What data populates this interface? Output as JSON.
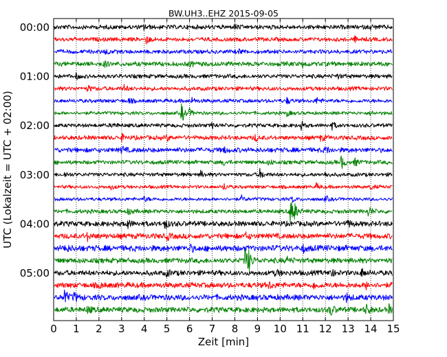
{
  "chart_data": {
    "type": "line",
    "title": "BW.UH3..EHZ 2015-09-05",
    "xlabel": "Zeit  [min]",
    "ylabel": "UTC (Lokalzeit = UTC + 02:00)",
    "xlim": [
      0,
      15
    ],
    "xticks": [
      0,
      1,
      2,
      3,
      4,
      5,
      6,
      7,
      8,
      9,
      10,
      11,
      12,
      13,
      14,
      15
    ],
    "x_grid": true,
    "trace_interval_minutes": 15,
    "colors": [
      "#000000",
      "#ff0000",
      "#0000ff",
      "#008000"
    ],
    "yticks": [
      {
        "label": "00:00",
        "row": 0
      },
      {
        "label": "01:00",
        "row": 4
      },
      {
        "label": "02:00",
        "row": 8
      },
      {
        "label": "03:00",
        "row": 12
      },
      {
        "label": "04:00",
        "row": 16
      },
      {
        "label": "05:00",
        "row": 20
      }
    ],
    "series": [
      {
        "start": "00:00",
        "amplitude": 0.32,
        "events": [
          {
            "t": 4.0,
            "a": 0.45
          },
          {
            "t": 8.0,
            "a": 0.35
          },
          {
            "t": 14.0,
            "a": 0.3
          }
        ]
      },
      {
        "start": "00:15",
        "amplitude": 0.3,
        "events": [
          {
            "t": 4.1,
            "a": 0.6
          },
          {
            "t": 13.3,
            "a": 0.35
          }
        ]
      },
      {
        "start": "00:30",
        "amplitude": 0.3,
        "events": [
          {
            "t": 2.3,
            "a": 0.45
          },
          {
            "t": 8.2,
            "a": 0.3
          }
        ]
      },
      {
        "start": "00:45",
        "amplitude": 0.34,
        "events": [
          {
            "t": 2.2,
            "a": 0.5
          },
          {
            "t": 6.0,
            "a": 0.35
          },
          {
            "t": 11.0,
            "a": 0.3
          }
        ]
      },
      {
        "start": "01:00",
        "amplitude": 0.3,
        "events": [
          {
            "t": 1.0,
            "a": 0.35
          },
          {
            "t": 12.5,
            "a": 0.35
          }
        ]
      },
      {
        "start": "01:15",
        "amplitude": 0.3,
        "events": [
          {
            "t": 1.5,
            "a": 0.45
          },
          {
            "t": 3.1,
            "a": 0.5
          }
        ]
      },
      {
        "start": "01:30",
        "amplitude": 0.28,
        "events": [
          {
            "t": 3.3,
            "a": 0.4
          },
          {
            "t": 6.1,
            "a": 0.45
          },
          {
            "t": 10.3,
            "a": 0.45
          },
          {
            "t": 11.6,
            "a": 0.5
          }
        ]
      },
      {
        "start": "01:45",
        "amplitude": 0.25,
        "events": [
          {
            "t": 5.65,
            "a": 1.6
          },
          {
            "t": 6.0,
            "a": 0.5
          },
          {
            "t": 10.3,
            "a": 0.45
          },
          {
            "t": 14.0,
            "a": 0.4
          }
        ]
      },
      {
        "start": "02:00",
        "amplitude": 0.28,
        "events": [
          {
            "t": 2.6,
            "a": 0.5
          },
          {
            "t": 7.0,
            "a": 0.4
          },
          {
            "t": 10.9,
            "a": 0.7
          },
          {
            "t": 12.3,
            "a": 0.55
          }
        ]
      },
      {
        "start": "02:15",
        "amplitude": 0.32,
        "events": [
          {
            "t": 3.0,
            "a": 0.45
          },
          {
            "t": 5.0,
            "a": 0.4
          },
          {
            "t": 8.9,
            "a": 0.5
          },
          {
            "t": 11.8,
            "a": 0.5
          }
        ]
      },
      {
        "start": "02:30",
        "amplitude": 0.36,
        "events": [
          {
            "t": 3.0,
            "a": 0.5
          },
          {
            "t": 7.5,
            "a": 0.45
          },
          {
            "t": 12.0,
            "a": 0.55
          }
        ]
      },
      {
        "start": "02:45",
        "amplitude": 0.3,
        "events": [
          {
            "t": 7.5,
            "a": 0.45
          },
          {
            "t": 9.5,
            "a": 0.4
          },
          {
            "t": 12.7,
            "a": 1.1
          },
          {
            "t": 13.3,
            "a": 0.6
          }
        ]
      },
      {
        "start": "03:00",
        "amplitude": 0.28,
        "events": [
          {
            "t": 0.5,
            "a": 0.4
          },
          {
            "t": 6.5,
            "a": 0.5
          },
          {
            "t": 9.1,
            "a": 0.8
          },
          {
            "t": 12.0,
            "a": 0.4
          }
        ]
      },
      {
        "start": "03:15",
        "amplitude": 0.25,
        "events": [
          {
            "t": 2.5,
            "a": 0.45
          },
          {
            "t": 7.5,
            "a": 0.6
          },
          {
            "t": 11.6,
            "a": 0.5
          },
          {
            "t": 14.0,
            "a": 0.4
          }
        ]
      },
      {
        "start": "03:30",
        "amplitude": 0.25,
        "events": [
          {
            "t": 4.0,
            "a": 0.4
          },
          {
            "t": 8.3,
            "a": 0.45
          },
          {
            "t": 10.5,
            "a": 0.5
          },
          {
            "t": 12.0,
            "a": 0.45
          }
        ]
      },
      {
        "start": "03:45",
        "amplitude": 0.3,
        "events": [
          {
            "t": 3.3,
            "a": 0.5
          },
          {
            "t": 10.45,
            "a": 2.1
          },
          {
            "t": 10.6,
            "a": 1.2
          },
          {
            "t": 13.9,
            "a": 0.9
          }
        ]
      },
      {
        "start": "04:00",
        "amplitude": 0.38,
        "events": [
          {
            "t": 3.2,
            "a": 1.0
          },
          {
            "t": 4.9,
            "a": 0.8
          },
          {
            "t": 13.0,
            "a": 0.6
          }
        ]
      },
      {
        "start": "04:15",
        "amplitude": 0.4,
        "events": [
          {
            "t": 1.5,
            "a": 0.55
          },
          {
            "t": 5.0,
            "a": 0.5
          },
          {
            "t": 8.5,
            "a": 0.5
          }
        ]
      },
      {
        "start": "04:30",
        "amplitude": 0.44,
        "events": [
          {
            "t": 0.5,
            "a": 0.6
          },
          {
            "t": 6.0,
            "a": 0.55
          },
          {
            "t": 11.0,
            "a": 0.5
          }
        ]
      },
      {
        "start": "04:45",
        "amplitude": 0.38,
        "events": [
          {
            "t": 8.45,
            "a": 2.2
          },
          {
            "t": 8.6,
            "a": 1.2
          },
          {
            "t": 10.3,
            "a": 0.5
          }
        ]
      },
      {
        "start": "05:00",
        "amplitude": 0.38,
        "events": [
          {
            "t": 5.0,
            "a": 0.5
          },
          {
            "t": 9.8,
            "a": 0.55
          },
          {
            "t": 12.2,
            "a": 0.8
          },
          {
            "t": 13.6,
            "a": 0.6
          }
        ]
      },
      {
        "start": "05:15",
        "amplitude": 0.4,
        "events": [
          {
            "t": 2.0,
            "a": 0.5
          },
          {
            "t": 9.5,
            "a": 0.5
          },
          {
            "t": 11.5,
            "a": 0.6
          },
          {
            "t": 13.8,
            "a": 0.5
          }
        ]
      },
      {
        "start": "05:30",
        "amplitude": 0.42,
        "events": [
          {
            "t": 0.45,
            "a": 1.4
          },
          {
            "t": 0.9,
            "a": 0.7
          },
          {
            "t": 12.9,
            "a": 0.6
          }
        ]
      },
      {
        "start": "05:45",
        "amplitude": 0.4,
        "events": [
          {
            "t": 1.5,
            "a": 0.55
          },
          {
            "t": 12.2,
            "a": 1.0
          },
          {
            "t": 13.8,
            "a": 0.8
          },
          {
            "t": 14.8,
            "a": 0.6
          }
        ]
      }
    ]
  }
}
